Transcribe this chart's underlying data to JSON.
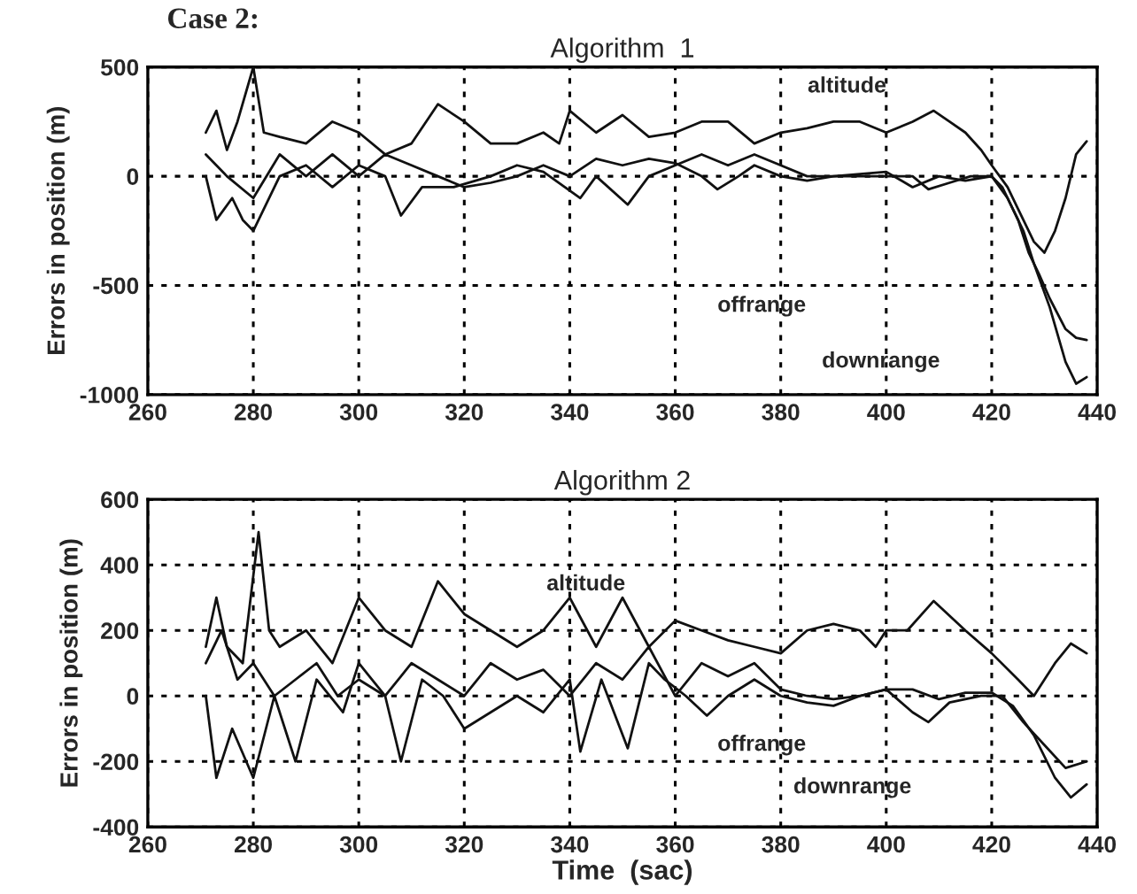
{
  "chart_data": [
    {
      "type": "line",
      "title": "Algorithm  1",
      "ylabel": "Errors in position (m)",
      "xlim": [
        260,
        440
      ],
      "xticks": [
        260,
        280,
        300,
        320,
        340,
        360,
        380,
        400,
        420,
        440
      ],
      "ylim": [
        -1000,
        500
      ],
      "yticks": [
        -1000,
        -500,
        0,
        500
      ],
      "grid": true,
      "line_style": "solid",
      "annotations": [
        "Case 2:",
        "altitude",
        "offrange",
        "downrange"
      ],
      "series": [
        {
          "color": "#111111",
          "x": [
            271,
            273,
            275,
            277,
            280,
            282,
            285,
            290,
            295,
            300,
            305,
            310,
            315,
            320,
            325,
            330,
            335,
            338,
            340,
            345,
            350,
            355,
            360,
            365,
            370,
            375,
            380,
            385,
            390,
            395,
            400,
            405,
            409,
            412,
            415,
            418,
            420,
            423,
            425,
            428,
            430,
            432,
            434,
            436,
            438
          ],
          "values": [
            200,
            300,
            120,
            250,
            500,
            200,
            180,
            150,
            250,
            200,
            100,
            150,
            330,
            250,
            150,
            150,
            200,
            150,
            300,
            200,
            280,
            180,
            200,
            250,
            250,
            150,
            200,
            220,
            250,
            250,
            200,
            250,
            300,
            250,
            200,
            120,
            50,
            -50,
            -150,
            -300,
            -350,
            -250,
            -100,
            100,
            160
          ]
        },
        {
          "color": "#111111",
          "x": [
            271,
            273,
            276,
            278,
            280,
            285,
            290,
            295,
            300,
            305,
            308,
            312,
            318,
            325,
            330,
            335,
            342,
            345,
            351,
            355,
            360,
            365,
            370,
            375,
            380,
            385,
            390,
            400,
            405,
            410,
            415,
            420,
            423,
            425,
            427,
            429,
            431,
            434,
            436,
            438
          ],
          "values": [
            0,
            -200,
            -100,
            -200,
            -250,
            0,
            50,
            -50,
            50,
            0,
            -180,
            -50,
            -50,
            0,
            50,
            20,
            -100,
            0,
            -130,
            0,
            50,
            100,
            50,
            100,
            50,
            0,
            0,
            20,
            -50,
            0,
            -20,
            0,
            -100,
            -200,
            -350,
            -450,
            -560,
            -700,
            -740,
            -750
          ]
        },
        {
          "color": "#111111",
          "x": [
            271,
            275,
            280,
            285,
            290,
            295,
            300,
            305,
            310,
            315,
            320,
            325,
            330,
            335,
            340,
            345,
            350,
            355,
            360,
            365,
            368,
            372,
            375,
            380,
            385,
            390,
            400,
            405,
            408,
            412,
            416,
            420,
            422,
            424,
            426,
            428,
            431,
            434,
            436,
            438
          ],
          "values": [
            100,
            0,
            -100,
            100,
            0,
            100,
            0,
            100,
            50,
            0,
            -50,
            -30,
            0,
            50,
            0,
            80,
            50,
            80,
            60,
            0,
            -60,
            0,
            50,
            0,
            -20,
            0,
            0,
            0,
            -60,
            -30,
            0,
            0,
            -50,
            -150,
            -250,
            -400,
            -600,
            -850,
            -950,
            -920
          ]
        }
      ]
    },
    {
      "type": "line",
      "title": "Algorithm 2",
      "xlabel": "Time  (sac)",
      "ylabel": "Errors in position (m)",
      "xlim": [
        260,
        440
      ],
      "xticks": [
        260,
        280,
        300,
        320,
        340,
        360,
        380,
        400,
        420,
        440
      ],
      "ylim": [
        -400,
        600
      ],
      "yticks": [
        -400,
        -200,
        0,
        200,
        400,
        600
      ],
      "grid": true,
      "line_style": "solid",
      "annotations": [
        "altitude",
        "offrange",
        "downrange"
      ],
      "series": [
        {
          "color": "#111111",
          "x": [
            271,
            273,
            275,
            278,
            281,
            283,
            285,
            290,
            295,
            300,
            305,
            310,
            315,
            320,
            325,
            330,
            335,
            340,
            345,
            350,
            355,
            360,
            365,
            370,
            375,
            380,
            385,
            390,
            395,
            398,
            400,
            404,
            409,
            415,
            420,
            425,
            428,
            432,
            435,
            438
          ],
          "values": [
            150,
            300,
            150,
            100,
            500,
            200,
            150,
            200,
            100,
            300,
            200,
            150,
            350,
            250,
            200,
            150,
            200,
            300,
            150,
            300,
            150,
            230,
            200,
            170,
            150,
            130,
            200,
            220,
            200,
            150,
            200,
            200,
            290,
            200,
            130,
            50,
            0,
            100,
            160,
            130
          ]
        },
        {
          "color": "#111111",
          "x": [
            271,
            273,
            276,
            280,
            284,
            288,
            292,
            297,
            300,
            305,
            308,
            312,
            316,
            320,
            325,
            330,
            335,
            340,
            342,
            346,
            351,
            355,
            358,
            362,
            366,
            370,
            375,
            380,
            385,
            390,
            395,
            400,
            405,
            408,
            412,
            418,
            422,
            426,
            430,
            434,
            438
          ],
          "values": [
            0,
            -250,
            -100,
            -250,
            0,
            -200,
            50,
            -50,
            100,
            0,
            -200,
            50,
            0,
            -100,
            -50,
            0,
            -50,
            50,
            -170,
            50,
            -160,
            100,
            50,
            0,
            -60,
            0,
            50,
            0,
            -20,
            -30,
            0,
            20,
            -50,
            -80,
            -20,
            0,
            0,
            -80,
            -150,
            -220,
            -200
          ]
        },
        {
          "color": "#111111",
          "x": [
            271,
            274,
            277,
            280,
            284,
            288,
            292,
            296,
            300,
            305,
            310,
            315,
            320,
            325,
            330,
            335,
            340,
            345,
            350,
            355,
            360,
            365,
            370,
            375,
            380,
            385,
            390,
            395,
            400,
            405,
            410,
            415,
            420,
            424,
            428,
            432,
            435,
            438
          ],
          "values": [
            100,
            200,
            50,
            100,
            0,
            50,
            100,
            0,
            50,
            0,
            100,
            50,
            0,
            100,
            50,
            80,
            0,
            100,
            50,
            150,
            0,
            100,
            60,
            100,
            20,
            0,
            -10,
            0,
            20,
            20,
            -10,
            10,
            10,
            -30,
            -120,
            -250,
            -310,
            -270
          ]
        }
      ]
    }
  ]
}
